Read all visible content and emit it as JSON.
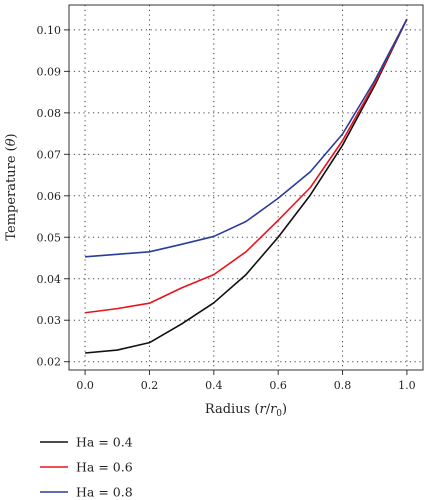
{
  "chart_data": {
    "type": "line",
    "xlabel": "Radius (r/r0)",
    "xlabel_parts": {
      "prefix": "Radius (",
      "var": "r",
      "slash": "/",
      "var2": "r",
      "sub": "0",
      "suffix": ")"
    },
    "ylabel": "Temperature (θ)",
    "ylabel_parts": {
      "prefix": "Temperature (",
      "var": "θ",
      "suffix": ")"
    },
    "xlim": [
      -0.05,
      1.05
    ],
    "ylim": [
      0.018,
      0.106
    ],
    "xticks": [
      "0.0",
      "0.2",
      "0.4",
      "0.6",
      "0.8",
      "1.0"
    ],
    "xtick_values": [
      0.0,
      0.2,
      0.4,
      0.6,
      0.8,
      1.0
    ],
    "yticks": [
      "0.02",
      "0.03",
      "0.04",
      "0.05",
      "0.06",
      "0.07",
      "0.08",
      "0.09",
      "0.10"
    ],
    "ytick_values": [
      0.02,
      0.03,
      0.04,
      0.05,
      0.06,
      0.07,
      0.08,
      0.09,
      0.1
    ],
    "grid": true,
    "legend_position": "bottom-left, below plot",
    "x": [
      0.0,
      0.1,
      0.2,
      0.3,
      0.4,
      0.5,
      0.6,
      0.7,
      0.8,
      0.9,
      1.0
    ],
    "series": [
      {
        "name": "Ha = 0.4",
        "color": "#111111",
        "values": [
          0.0221,
          0.0228,
          0.0246,
          0.0291,
          0.0342,
          0.041,
          0.05,
          0.0602,
          0.0722,
          0.0866,
          0.1026
        ]
      },
      {
        "name": "Ha = 0.6",
        "color": "#e8141c",
        "values": [
          0.0318,
          0.0328,
          0.0341,
          0.0378,
          0.041,
          0.0465,
          0.0541,
          0.062,
          0.0733,
          0.0871,
          0.1026
        ]
      },
      {
        "name": "Ha = 0.8",
        "color": "#2b3d9c",
        "values": [
          0.0453,
          0.0459,
          0.0465,
          0.0483,
          0.0502,
          0.0538,
          0.0594,
          0.0658,
          0.0749,
          0.0878,
          0.1026
        ]
      }
    ]
  }
}
